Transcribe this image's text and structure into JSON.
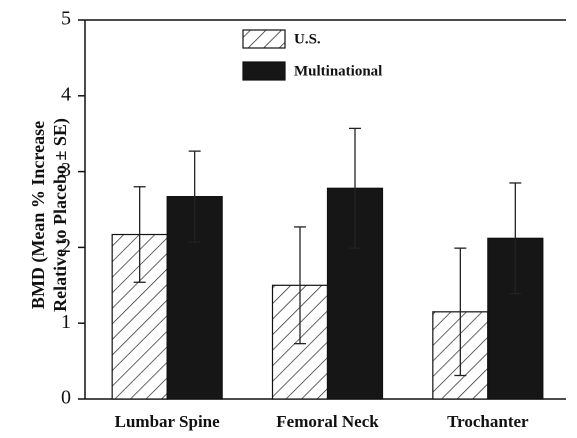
{
  "chart_data": {
    "type": "bar",
    "ylabel": [
      "BMD (Mean % Increase",
      "Relative to Placebo ± SE)"
    ],
    "categories": [
      "Lumbar Spine",
      "Femoral Neck",
      "Trochanter"
    ],
    "series": [
      {
        "name": "U.S.",
        "color": "#222222",
        "fill_style": "hatch",
        "values": [
          2.17,
          1.5,
          1.15
        ],
        "errors": [
          0.63,
          0.77,
          0.84
        ]
      },
      {
        "name": "Multinational",
        "color": "#161616",
        "fill_style": "solid",
        "values": [
          2.67,
          2.78,
          2.12
        ],
        "errors": [
          0.6,
          0.79,
          0.73
        ]
      }
    ],
    "ylim": [
      0,
      5
    ],
    "yticks": [
      0,
      1,
      2,
      3,
      4,
      5
    ],
    "grid": false,
    "legend": "top"
  }
}
